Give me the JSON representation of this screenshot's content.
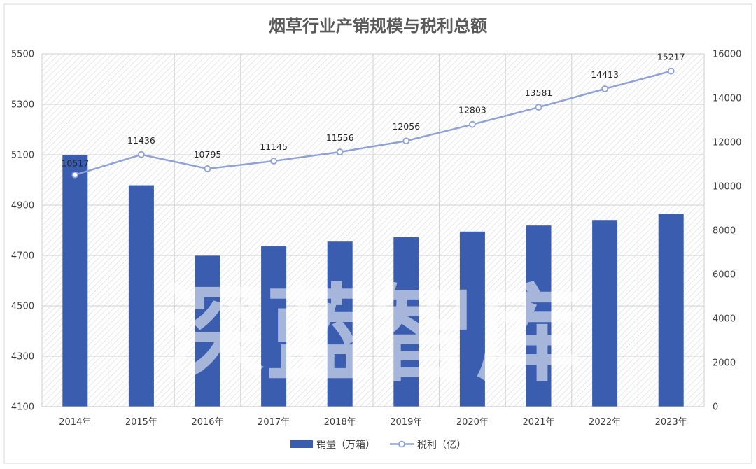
{
  "chart_data": {
    "type": "bar+line",
    "title": "烟草行业产销规模与税利总额",
    "categories": [
      "2014年",
      "2015年",
      "2016年",
      "2017年",
      "2018年",
      "2019年",
      "2020年",
      "2021年",
      "2022年",
      "2023年"
    ],
    "series": [
      {
        "name": "销量（万箱）",
        "type": "bar",
        "axis": "left",
        "color": "#3a5db0",
        "values": [
          5099,
          4979,
          4699,
          4736,
          4755,
          4773,
          4795,
          4819,
          4841,
          4865
        ]
      },
      {
        "name": "税利（亿）",
        "type": "line",
        "axis": "right",
        "color": "#8fa2d6",
        "values": [
          10517,
          11436,
          10795,
          11145,
          11556,
          12056,
          12803,
          13581,
          14413,
          15217
        ],
        "labels": [
          "10517",
          "11436",
          "10795",
          "11145",
          "11556",
          "12056",
          "12803",
          "13581",
          "14413",
          "15217"
        ]
      }
    ],
    "y_left": {
      "min": 4100,
      "max": 5500,
      "ticks": [
        "4100",
        "4300",
        "4500",
        "4700",
        "4900",
        "5100",
        "5300",
        "5500"
      ]
    },
    "y_right": {
      "min": 0,
      "max": 16000,
      "ticks": [
        "0",
        "2000",
        "4000",
        "6000",
        "8000",
        "10000",
        "12000",
        "14000",
        "16000"
      ]
    },
    "grid": true,
    "legend_position": "bottom",
    "watermark": "深蓝智库"
  }
}
